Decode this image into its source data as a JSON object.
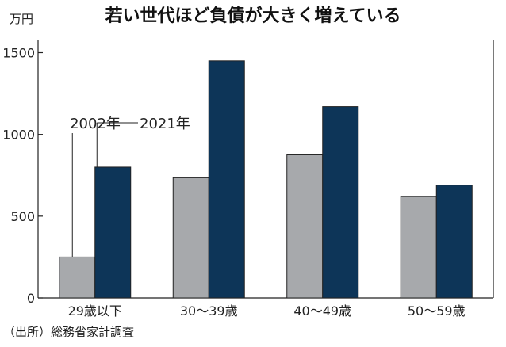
{
  "chart_data": {
    "type": "bar",
    "title": "若い世代ほど負債が大きく増えている",
    "unit_label": "万円",
    "source": "（出所）総務省家計調査",
    "categories": [
      "29歳以下",
      "30〜39歳",
      "40〜49歳",
      "50〜59歳"
    ],
    "series": [
      {
        "name": "2002年",
        "values": [
          250,
          735,
          875,
          620
        ],
        "color": "#a7a9ac"
      },
      {
        "name": "2021年",
        "values": [
          800,
          1450,
          1170,
          690
        ],
        "color": "#0d3558"
      }
    ],
    "yticks": [
      0,
      500,
      1000,
      1500
    ],
    "ylim": [
      0,
      1580
    ],
    "grid": false,
    "legend": "callout-labels"
  }
}
